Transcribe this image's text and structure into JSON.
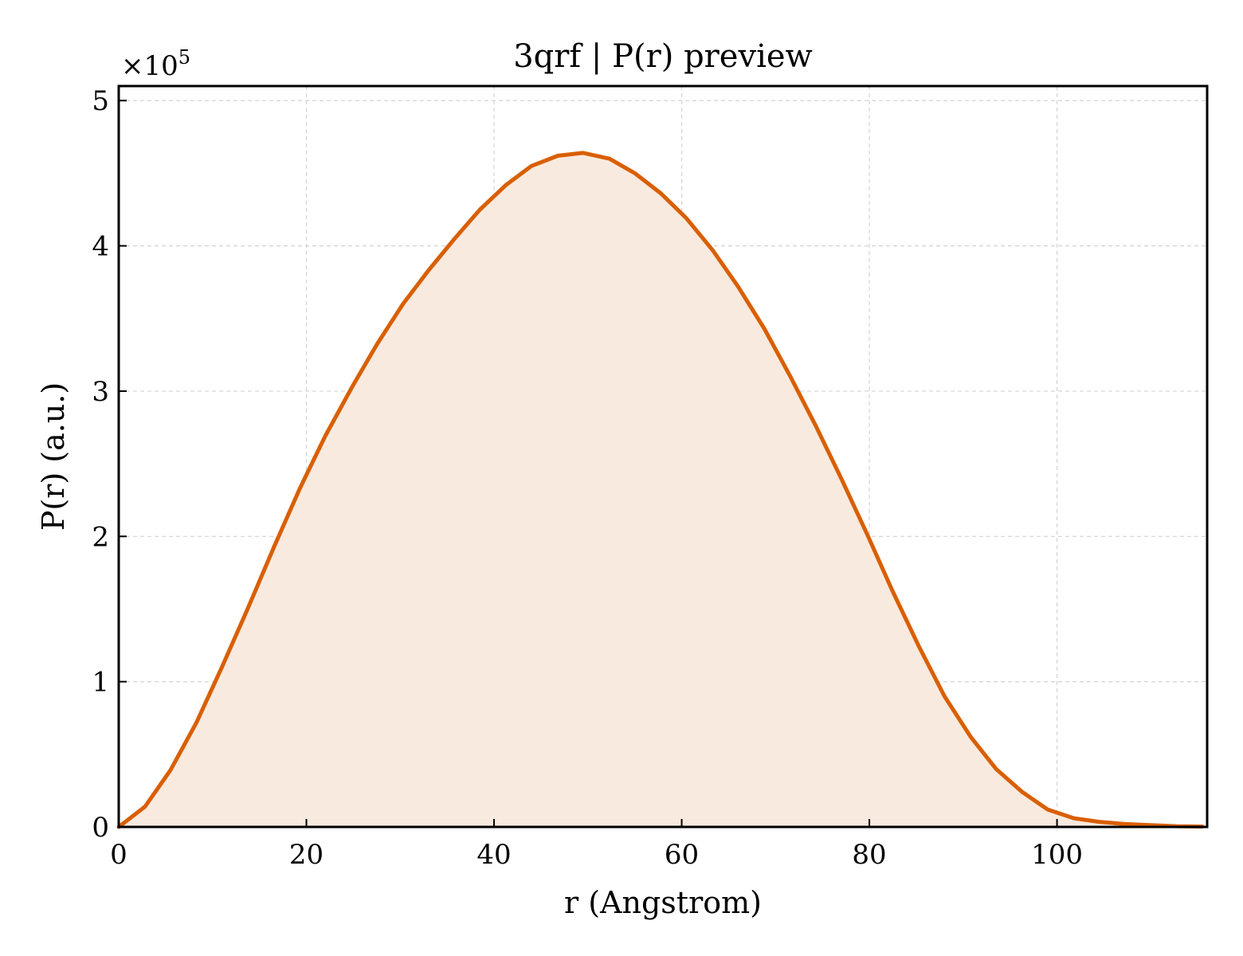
{
  "chart_data": {
    "type": "area",
    "title": "3qrf | P(r) preview",
    "xlabel": "r (Angstrom)",
    "ylabel": "P(r) (a.u.)",
    "y_offset_label": {
      "base": "×10",
      "exponent": "5"
    },
    "xlim": [
      0,
      116
    ],
    "ylim": [
      0,
      5.1
    ],
    "y_scale_factor": 100000,
    "x_ticks": [
      0,
      20,
      40,
      60,
      80,
      100
    ],
    "x_tick_labels": [
      "0",
      "20",
      "40",
      "60",
      "80",
      "100"
    ],
    "y_ticks": [
      0,
      1,
      2,
      3,
      4,
      5
    ],
    "y_tick_labels": [
      "0",
      "1",
      "2",
      "3",
      "4",
      "5"
    ],
    "grid": true,
    "legend": "none",
    "line_color": "#d95f02",
    "fill_color": "#f9eadf",
    "series": [
      {
        "x": [
          0,
          2.8,
          5.5,
          8.3,
          11.0,
          13.8,
          16.5,
          19.3,
          22.0,
          24.8,
          27.5,
          30.3,
          33.0,
          35.8,
          38.5,
          41.3,
          44.0,
          46.8,
          49.5,
          52.3,
          55.0,
          57.8,
          60.5,
          63.3,
          66.0,
          68.8,
          71.5,
          74.3,
          77.0,
          79.8,
          82.5,
          85.3,
          88.0,
          90.8,
          93.5,
          96.3,
          99.0,
          101.8,
          104.5,
          107.3,
          110.0,
          112.8,
          115.5
        ],
        "y": [
          0,
          0.14,
          0.39,
          0.72,
          1.1,
          1.51,
          1.92,
          2.33,
          2.69,
          3.02,
          3.32,
          3.6,
          3.83,
          4.05,
          4.25,
          4.42,
          4.55,
          4.62,
          4.64,
          4.6,
          4.5,
          4.36,
          4.19,
          3.97,
          3.72,
          3.43,
          3.11,
          2.76,
          2.4,
          2.01,
          1.62,
          1.24,
          0.9,
          0.62,
          0.4,
          0.24,
          0.12,
          0.06,
          0.035,
          0.02,
          0.012,
          0.005,
          0.003
        ]
      }
    ]
  }
}
